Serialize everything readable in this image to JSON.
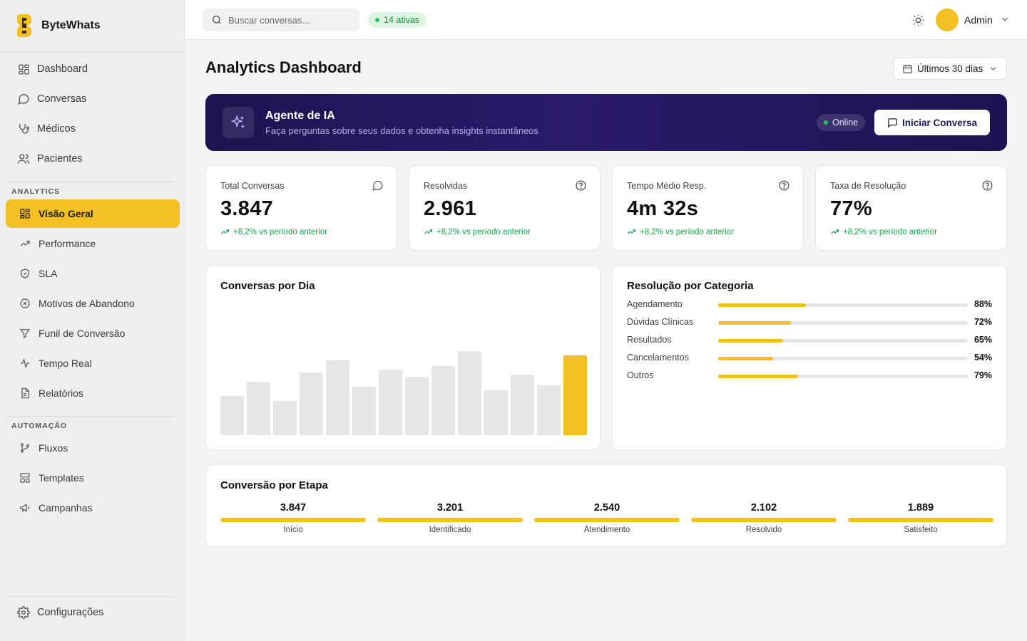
{
  "brand": {
    "name": "ByteWhats"
  },
  "sidebar": {
    "main_items": [
      {
        "label": "Dashboard",
        "icon": "layout-grid-icon"
      },
      {
        "label": "Conversas",
        "icon": "message-circle-icon"
      },
      {
        "label": "Médicos",
        "icon": "stethoscope-icon"
      },
      {
        "label": "Pacientes",
        "icon": "users-icon"
      }
    ],
    "analytics_label": "ANALYTICS",
    "analytics_items": [
      {
        "label": "Visão Geral",
        "icon": "layout-grid-icon",
        "active": true
      },
      {
        "label": "Performance",
        "icon": "trending-up-icon"
      },
      {
        "label": "SLA",
        "icon": "shield-check-icon"
      },
      {
        "label": "Motivos de Abandono",
        "icon": "x-circle-icon"
      },
      {
        "label": "Funil de Conversão",
        "icon": "filter-icon"
      },
      {
        "label": "Tempo Real",
        "icon": "activity-icon"
      },
      {
        "label": "Relatórios",
        "icon": "file-text-icon"
      }
    ],
    "automation_label": "AUTOMAÇÃO",
    "automation_items": [
      {
        "label": "Fluxos",
        "icon": "git-branch-icon"
      },
      {
        "label": "Templates",
        "icon": "layout-template-icon"
      },
      {
        "label": "Campanhas",
        "icon": "megaphone-icon"
      }
    ],
    "settings_label": "Configurações"
  },
  "topbar": {
    "search_placeholder": "Buscar conversas...",
    "active_badge": "14 ativas",
    "user_name": "Admin"
  },
  "page": {
    "title": "Analytics Dashboard",
    "range_label": "Últimos 30 dias"
  },
  "ai_banner": {
    "title": "Agente de IA",
    "subtitle": "Faça perguntas sobre seus dados e obtenha insights instantâneos",
    "status": "Online",
    "button_label": "Iniciar Conversa"
  },
  "kpis": [
    {
      "label": "Total Conversas",
      "value": "3.847",
      "trend": "+8,2% vs período anterior",
      "icon": "message-circle-icon"
    },
    {
      "label": "Resolvidas",
      "value": "2.961",
      "trend": "+8,2% vs período anterior",
      "icon": "help-circle-icon"
    },
    {
      "label": "Tempo Médio Resp.",
      "value": "4m 32s",
      "trend": "+8,2% vs período anterior",
      "icon": "help-circle-icon"
    },
    {
      "label": "Taxa de Resolução",
      "value": "77%",
      "trend": "+8,2% vs período anterior",
      "icon": "help-circle-icon"
    }
  ],
  "daily_chart": {
    "title": "Conversas por Dia"
  },
  "chart_data": {
    "type": "bar",
    "values": [
      55,
      75,
      48,
      88,
      105,
      68,
      92,
      82,
      97,
      118,
      63,
      85,
      70,
      112
    ],
    "highlight_index": 13,
    "colors": {
      "bar": "#e6e6e6",
      "highlight": "#f5c021"
    }
  },
  "categories": {
    "title": "Resolução por Categoria",
    "items": [
      {
        "label": "Agendamento",
        "pct_label": "88%",
        "fill": 0.35
      },
      {
        "label": "Dúvidas Clínicas",
        "pct_label": "72%",
        "fill": 0.29
      },
      {
        "label": "Resultados",
        "pct_label": "65%",
        "fill": 0.26
      },
      {
        "label": "Cancelamentos",
        "pct_label": "54%",
        "fill": 0.22
      },
      {
        "label": "Outros",
        "pct_label": "79%",
        "fill": 0.32
      }
    ]
  },
  "funnel": {
    "title": "Conversão por Etapa",
    "stages": [
      {
        "value": "3.847",
        "label": "Início"
      },
      {
        "value": "3.201",
        "label": "Identificado"
      },
      {
        "value": "2.540",
        "label": "Atendimento"
      },
      {
        "value": "2.102",
        "label": "Resolvido"
      },
      {
        "value": "1.889",
        "label": "Satisfeito"
      }
    ]
  },
  "colors": {
    "accent": "#f5c021",
    "success": "#16a34a",
    "banner": "#1c1550"
  }
}
